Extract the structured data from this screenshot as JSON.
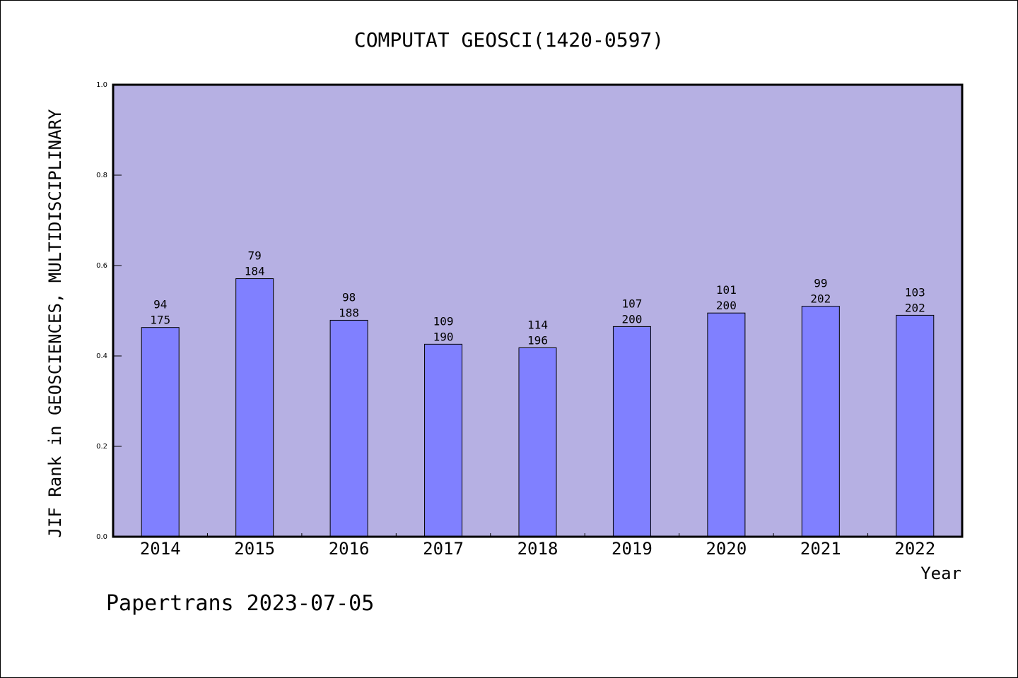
{
  "chart_data": {
    "type": "bar",
    "title": "COMPUTAT GEOSCI(1420-0597)",
    "xlabel": "Year",
    "ylabel": "JIF Rank in GEOSCIENCES, MULTIDISCIPLINARY",
    "ylim": [
      0,
      1
    ],
    "yticks": [
      "0.0",
      "0.2",
      "0.4",
      "0.6",
      "0.8",
      "1.0"
    ],
    "categories": [
      "2014",
      "2015",
      "2016",
      "2017",
      "2018",
      "2019",
      "2020",
      "2021",
      "2022"
    ],
    "ranks": [
      94,
      79,
      98,
      109,
      114,
      107,
      101,
      99,
      103
    ],
    "totals": [
      175,
      184,
      188,
      190,
      196,
      200,
      200,
      202,
      202
    ],
    "values": [
      0.463,
      0.571,
      0.479,
      0.426,
      0.418,
      0.465,
      0.495,
      0.51,
      0.49
    ],
    "grid": false,
    "colors": {
      "plot_bg": "#b6b0e3",
      "bar": "#8080ff"
    }
  },
  "footer": "Papertrans 2023-07-05"
}
